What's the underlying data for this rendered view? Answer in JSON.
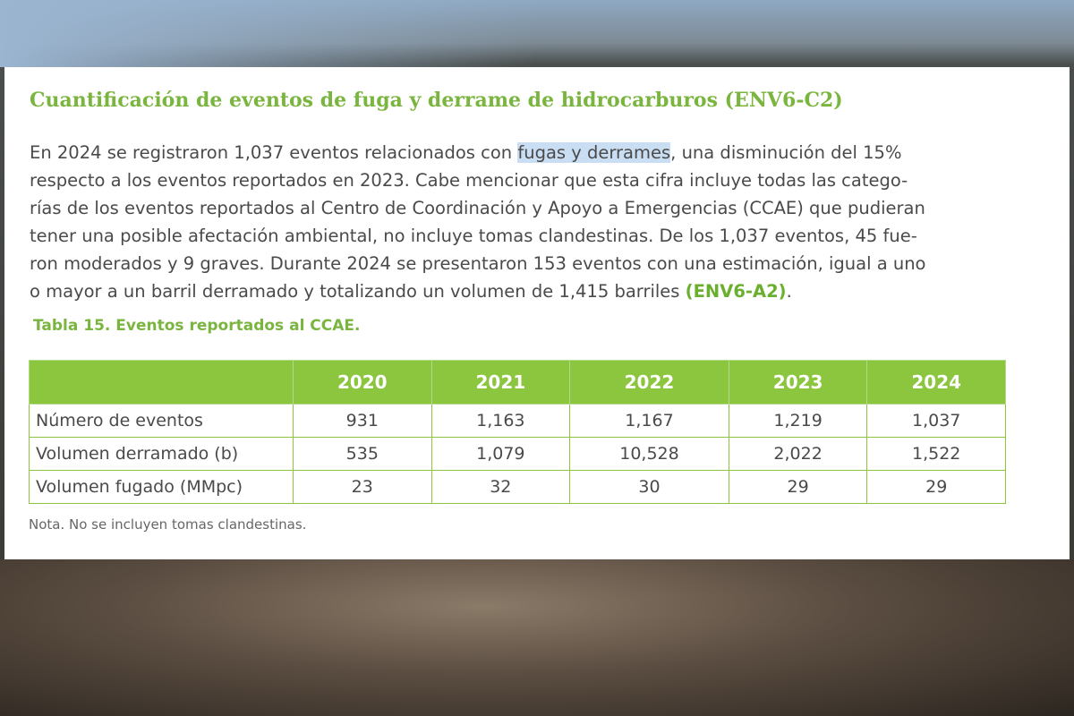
{
  "section": {
    "heading": "Cuantificación de eventos de fuga y derrame de hidrocarburos (ENV6-C2)",
    "paragraph": [
      [
        "En 2024 se registraron 1,037 eventos relacionados con ",
        "fugas y derrames",
        ", una disminución del 15%"
      ],
      [
        "respecto a los eventos reportados en 2023. Cabe mencionar que esta cifra incluye todas las catego-"
      ],
      [
        "rías de los eventos reportados al Centro de Coordinación y Apoyo a Emergencias (CCAE) que pudieran"
      ],
      [
        "tener una posible afectación ambiental, no incluye tomas clandestinas. De los 1,037 eventos, 45 fue-"
      ],
      [
        "ron moderados y 9 graves. Durante 2024 se presentaron 153 eventos con una estimación, igual a uno"
      ],
      [
        "o mayor a un barril derramado y totalizando un volumen de 1,415 barriles ",
        "(ENV6-A2)",
        "."
      ]
    ],
    "table_caption": "Tabla 15. Eventos reportados al CCAE.",
    "table": {
      "header": [
        "2020",
        "2021",
        "2022",
        "2023",
        "2024"
      ],
      "rows": [
        [
          "Número de eventos",
          "931",
          "1,163",
          "1,167",
          "1,219",
          "1,037"
        ],
        [
          "Volumen derramado (b)",
          "535",
          "1,079",
          "10,528",
          "2,022",
          "1,522"
        ],
        [
          "Volumen fugado (MMpc)",
          "23",
          "32",
          "30",
          "29",
          "29"
        ]
      ]
    },
    "note": "Nota. No se incluyen tomas clandestinas."
  }
}
